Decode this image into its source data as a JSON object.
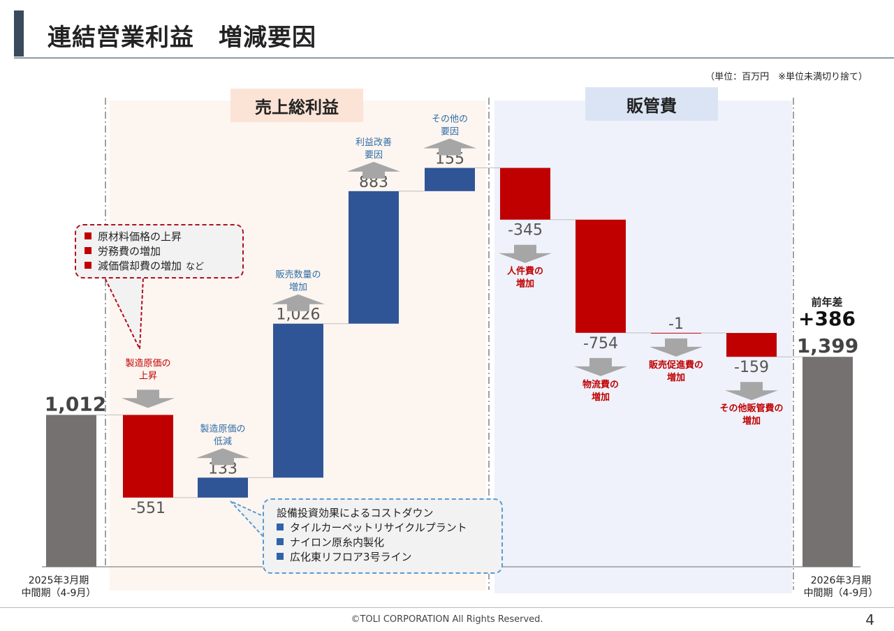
{
  "title": "連結営業利益　増減要因",
  "unit_note": "（単位：百万円　※単位未満切り捨て）",
  "section_headers": {
    "gross_profit": "売上総利益",
    "sga": "販管費"
  },
  "footer": "©TOLI CORPORATION All Rights Reserved.",
  "page_number": "4",
  "difference": {
    "label": "前年差",
    "value": "+386"
  },
  "period_labels": {
    "start": "2025年3月期\n中間期（4-9月）",
    "end": "2026年3月期\n中間期（4-9月）"
  },
  "callouts": {
    "cost_increase": {
      "items": [
        "原材料価格の上昇",
        "労務費の増加",
        "減価償却費の増加"
      ],
      "suffix": "など"
    },
    "cost_down": {
      "heading": "設備投資効果によるコストダウン",
      "items": [
        "タイルカーペットリサイクルプラント",
        "ナイロン原糸内製化",
        "広化東リフロア3号ライン"
      ]
    }
  },
  "colors": {
    "total": "#767171",
    "increase": "#2f5597",
    "decrease": "#c00000",
    "arrow": "#a6a6a6",
    "label_blue": "#2e6ea6",
    "label_red": "#c00000"
  },
  "chart_data": {
    "type": "waterfall",
    "title": "連結営業利益　増減要因",
    "ylim": [
      0,
      1750
    ],
    "items": [
      {
        "name": "2025年3月期中間期（4-9月）",
        "kind": "total",
        "value": 1012,
        "value_label": "1,012"
      },
      {
        "name": "製造原価の\n上昇",
        "kind": "delta",
        "value": -551,
        "value_label": "-551"
      },
      {
        "name": "製造原価の\n低減",
        "kind": "delta",
        "value": 133,
        "value_label": "133"
      },
      {
        "name": "販売数量の\n増加",
        "kind": "delta",
        "value": 1026,
        "value_label": "1,026"
      },
      {
        "name": "利益改善\n要因",
        "kind": "delta",
        "value": 883,
        "value_label": "883"
      },
      {
        "name": "その他の\n要因",
        "kind": "delta",
        "value": 155,
        "value_label": "155"
      },
      {
        "name": "人件費の\n増加",
        "kind": "delta",
        "value": -345,
        "value_label": "-345"
      },
      {
        "name": "物流費の\n増加",
        "kind": "delta",
        "value": -754,
        "value_label": "-754"
      },
      {
        "name": "販売促進費の\n増加",
        "kind": "delta",
        "value": -1,
        "value_label": "-1"
      },
      {
        "name": "その他販管費の\n増加",
        "kind": "delta",
        "value": -159,
        "value_label": "-159"
      },
      {
        "name": "2026年3月期中間期（4-9月）",
        "kind": "total",
        "value": 1399,
        "value_label": "1,399"
      }
    ]
  }
}
